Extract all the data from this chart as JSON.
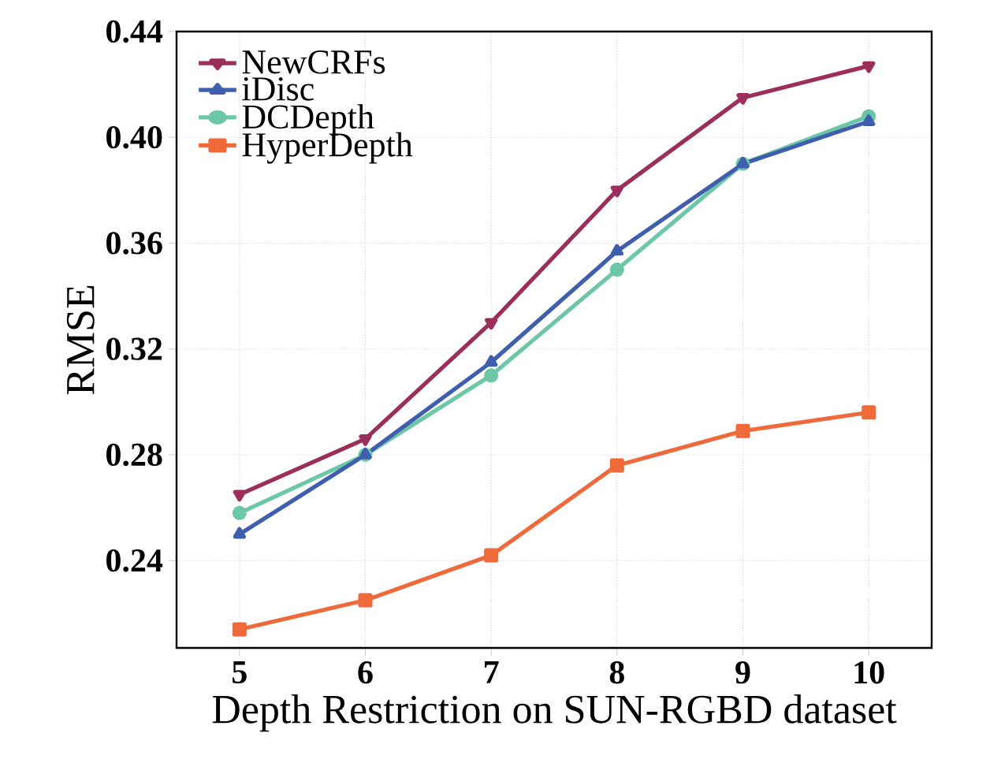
{
  "chart_data": {
    "type": "line",
    "xlabel": "Depth Restriction on SUN-RGBD dataset",
    "ylabel": "RMSE",
    "x": [
      5,
      6,
      7,
      8,
      9,
      10
    ],
    "series": [
      {
        "name": "NewCRFs",
        "color": "#9b2f5a",
        "marker": "triangle-down",
        "values": [
          0.265,
          0.286,
          0.33,
          0.38,
          0.415,
          0.427
        ]
      },
      {
        "name": "iDisc",
        "color": "#3f5fae",
        "marker": "triangle",
        "values": [
          0.25,
          0.28,
          0.315,
          0.357,
          0.39,
          0.406
        ]
      },
      {
        "name": "DCDepth",
        "color": "#6cc7a6",
        "marker": "circle",
        "values": [
          0.258,
          0.28,
          0.31,
          0.35,
          0.39,
          0.408
        ]
      },
      {
        "name": "HyperDepth",
        "color": "#ee6a3a",
        "marker": "square",
        "values": [
          0.214,
          0.225,
          0.242,
          0.276,
          0.289,
          0.296
        ]
      }
    ],
    "xlim": [
      4.5,
      10.5
    ],
    "ylim": [
      0.207,
      0.44
    ],
    "xticks": [
      5,
      6,
      7,
      8,
      9,
      10
    ],
    "yticks": [
      {
        "value": 0.24,
        "label": "0.24"
      },
      {
        "value": 0.28,
        "label": "0.28"
      },
      {
        "value": 0.32,
        "label": "0.32"
      },
      {
        "value": 0.36,
        "label": "0.36"
      },
      {
        "value": 0.4,
        "label": "0.40"
      },
      {
        "value": 0.44,
        "label": "0.44"
      }
    ],
    "grid": true,
    "legend": "top left",
    "line_style": "solid"
  }
}
